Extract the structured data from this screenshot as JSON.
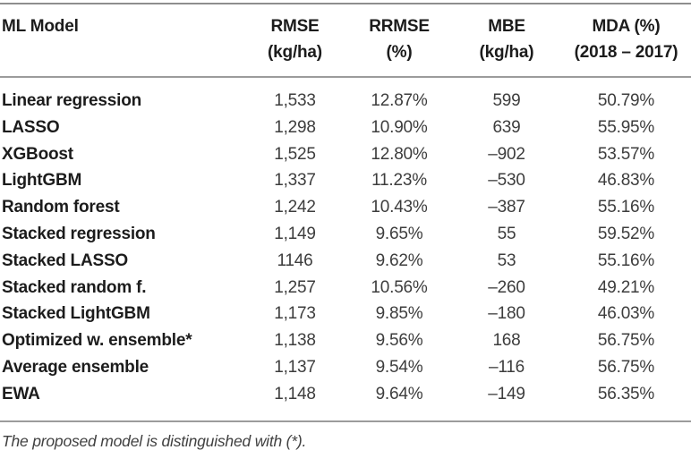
{
  "colors": {
    "background": "#ffffff",
    "heading_text": "#1c1c1c",
    "value_text": "#3d3d3d",
    "rule_top": "#8e8e8e",
    "rule_inner": "#9b9b9b",
    "footnote_text": "#414141"
  },
  "table": {
    "header": {
      "col1_line1": "ML Model",
      "col1_line2": "",
      "col2_line1": "RMSE",
      "col2_line2": "(kg/ha)",
      "col3_line1": "RRMSE",
      "col3_line2": "(%)",
      "col4_line1": "MBE",
      "col4_line2": "(kg/ha)",
      "col5_line1": "MDA (%)",
      "col5_line2": "(2018 – 2017)"
    },
    "rows": [
      {
        "model": "Linear regression",
        "rmse": "1,533",
        "rrmse": "12.87%",
        "mbe": "599",
        "mda": "50.79%"
      },
      {
        "model": "LASSO",
        "rmse": "1,298",
        "rrmse": "10.90%",
        "mbe": "639",
        "mda": "55.95%"
      },
      {
        "model": "XGBoost",
        "rmse": "1,525",
        "rrmse": "12.80%",
        "mbe": "–902",
        "mda": "53.57%"
      },
      {
        "model": "LightGBM",
        "rmse": "1,337",
        "rrmse": "11.23%",
        "mbe": "–530",
        "mda": "46.83%"
      },
      {
        "model": "Random forest",
        "rmse": "1,242",
        "rrmse": "10.43%",
        "mbe": "–387",
        "mda": "55.16%"
      },
      {
        "model": "Stacked regression",
        "rmse": "1,149",
        "rrmse": "9.65%",
        "mbe": "55",
        "mda": "59.52%"
      },
      {
        "model": "Stacked LASSO",
        "rmse": "1146",
        "rrmse": "9.62%",
        "mbe": "53",
        "mda": "55.16%"
      },
      {
        "model": "Stacked random f.",
        "rmse": "1,257",
        "rrmse": "10.56%",
        "mbe": "–260",
        "mda": "49.21%"
      },
      {
        "model": "Stacked LightGBM",
        "rmse": "1,173",
        "rrmse": "9.85%",
        "mbe": "–180",
        "mda": "46.03%"
      },
      {
        "model": "Optimized w. ensemble*",
        "rmse": "1,138",
        "rrmse": "9.56%",
        "mbe": "168",
        "mda": "56.75%"
      },
      {
        "model": "Average ensemble",
        "rmse": "1,137",
        "rrmse": "9.54%",
        "mbe": "–116",
        "mda": "56.75%"
      },
      {
        "model": "EWA",
        "rmse": "1,148",
        "rrmse": "9.64%",
        "mbe": "–149",
        "mda": "56.35%"
      }
    ],
    "footnote": "The proposed model is distinguished with (*)."
  },
  "chart_data": {
    "type": "table",
    "title": "",
    "columns": [
      "ML Model",
      "RMSE (kg/ha)",
      "RRMSE (%)",
      "MBE (kg/ha)",
      "MDA (%) (2018 – 2017)"
    ],
    "rows": [
      [
        "Linear regression",
        1533,
        12.87,
        599,
        50.79
      ],
      [
        "LASSO",
        1298,
        10.9,
        639,
        55.95
      ],
      [
        "XGBoost",
        1525,
        12.8,
        -902,
        53.57
      ],
      [
        "LightGBM",
        1337,
        11.23,
        -530,
        46.83
      ],
      [
        "Random forest",
        1242,
        10.43,
        -387,
        55.16
      ],
      [
        "Stacked regression",
        1149,
        9.65,
        55,
        59.52
      ],
      [
        "Stacked LASSO",
        1146,
        9.62,
        53,
        55.16
      ],
      [
        "Stacked random f.",
        1257,
        10.56,
        -260,
        49.21
      ],
      [
        "Stacked LightGBM",
        1173,
        9.85,
        -180,
        46.03
      ],
      [
        "Optimized w. ensemble*",
        1138,
        9.56,
        168,
        56.75
      ],
      [
        "Average ensemble",
        1137,
        9.54,
        -116,
        56.75
      ],
      [
        "EWA",
        1148,
        9.64,
        -149,
        56.35
      ]
    ]
  }
}
